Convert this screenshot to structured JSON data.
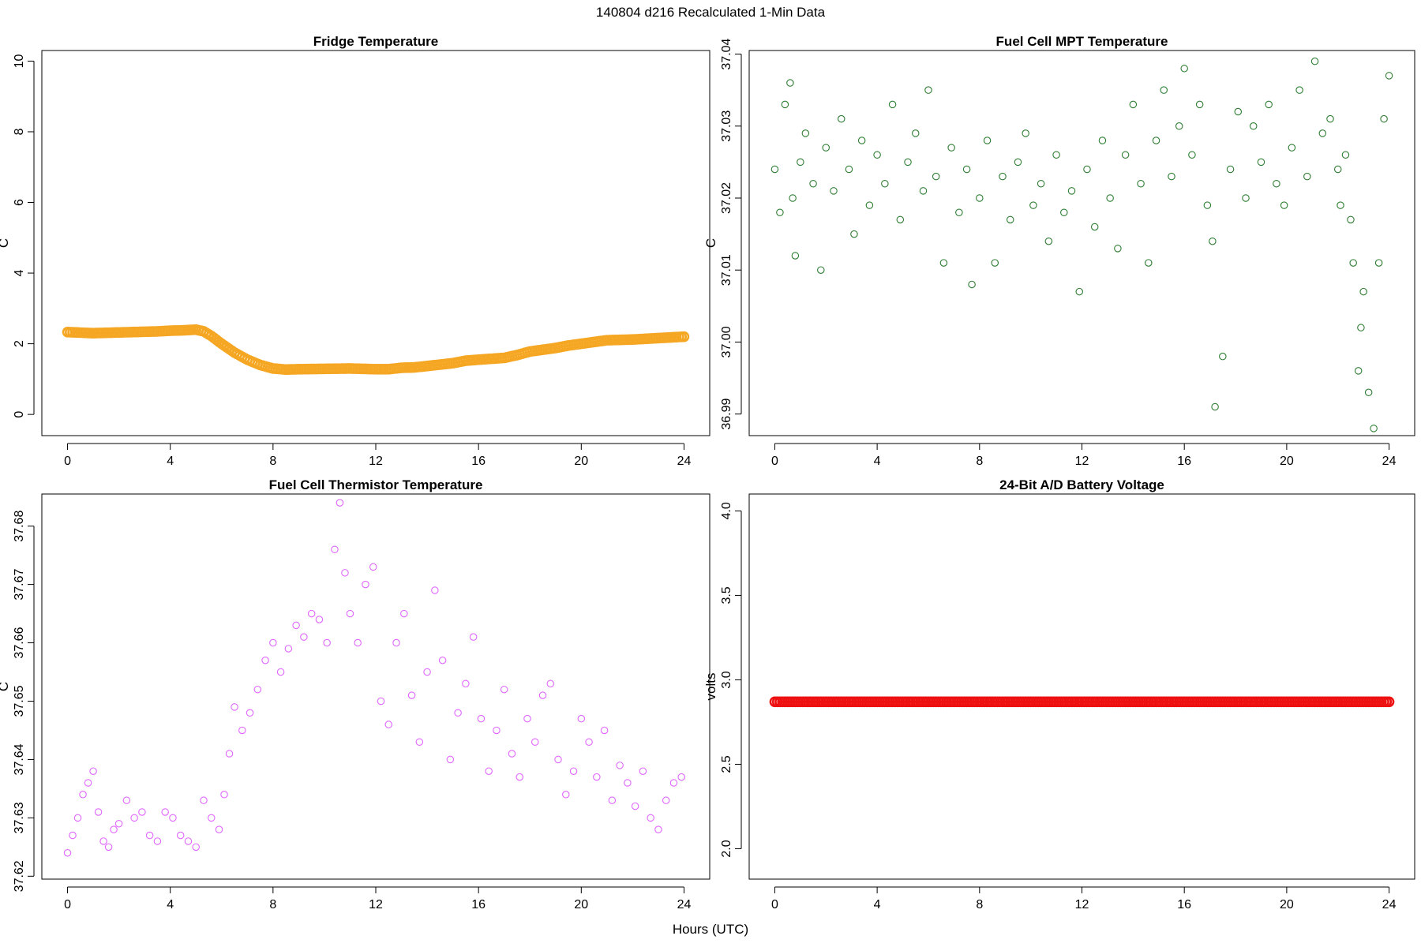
{
  "figure": {
    "title": "140804   d216   Recalculated 1-Min Data",
    "xlabel": "Hours (UTC)"
  },
  "chart_data": [
    {
      "type": "scatter",
      "title": "Fridge Temperature",
      "xlabel": "",
      "ylabel": "C",
      "xlim": [
        -1,
        25
      ],
      "ylim": [
        -0.6,
        10.3
      ],
      "xticks": [
        0,
        4,
        8,
        12,
        16,
        20,
        24
      ],
      "xtick_labels": [
        "0",
        "4",
        "8",
        "12",
        "16",
        "20",
        "24"
      ],
      "yticks": [
        0,
        2,
        4,
        6,
        8,
        10
      ],
      "ytick_labels": [
        "0",
        "2",
        "4",
        "6",
        "8",
        "10"
      ],
      "color": "#f5a623",
      "marker_style": "dense",
      "sample_interval_hours": 0.1,
      "series": [
        {
          "name": "Fridge Temperature",
          "x": [
            0,
            1,
            2,
            3,
            3.5,
            4,
            4.5,
            5,
            5.3,
            5.6,
            6,
            6.5,
            7,
            7.5,
            8,
            8.5,
            9,
            10,
            11,
            12,
            12.5,
            13,
            13.5,
            14,
            15,
            15.5,
            16,
            17,
            17.5,
            18,
            19,
            19.5,
            20,
            20.5,
            21,
            22,
            23,
            24
          ],
          "y": [
            2.33,
            2.3,
            2.32,
            2.34,
            2.35,
            2.37,
            2.38,
            2.4,
            2.35,
            2.22,
            2.0,
            1.75,
            1.55,
            1.4,
            1.3,
            1.27,
            1.28,
            1.29,
            1.3,
            1.28,
            1.28,
            1.32,
            1.33,
            1.37,
            1.45,
            1.52,
            1.55,
            1.6,
            1.68,
            1.78,
            1.88,
            1.95,
            2.0,
            2.05,
            2.1,
            2.12,
            2.16,
            2.2
          ]
        }
      ]
    },
    {
      "type": "scatter",
      "title": "Fuel Cell MPT Temperature",
      "xlabel": "",
      "ylabel": "C",
      "xlim": [
        -1,
        25
      ],
      "ylim": [
        36.987,
        37.0405
      ],
      "xticks": [
        0,
        4,
        8,
        12,
        16,
        20,
        24
      ],
      "xtick_labels": [
        "0",
        "4",
        "8",
        "12",
        "16",
        "20",
        "24"
      ],
      "yticks": [
        36.99,
        37.0,
        37.01,
        37.02,
        37.03,
        37.04
      ],
      "ytick_labels": [
        "36.99",
        "37.00",
        "37.01",
        "37.02",
        "37.03",
        "37.04"
      ],
      "color": "#2e7d32",
      "marker_style": "open-circle",
      "series": [
        {
          "name": "Fuel Cell MPT Temperature",
          "x": [
            0.0,
            0.2,
            0.4,
            0.6,
            0.7,
            0.8,
            1.0,
            1.2,
            1.5,
            1.8,
            2.0,
            2.3,
            2.6,
            2.9,
            3.1,
            3.4,
            3.7,
            4.0,
            4.3,
            4.6,
            4.9,
            5.2,
            5.5,
            5.8,
            6.0,
            6.3,
            6.6,
            6.9,
            7.2,
            7.5,
            7.7,
            8.0,
            8.3,
            8.6,
            8.9,
            9.2,
            9.5,
            9.8,
            10.1,
            10.4,
            10.7,
            11.0,
            11.3,
            11.6,
            11.9,
            12.2,
            12.5,
            12.8,
            13.1,
            13.4,
            13.7,
            14.0,
            14.3,
            14.6,
            14.9,
            15.2,
            15.5,
            15.8,
            16.0,
            16.3,
            16.6,
            16.9,
            17.1,
            17.2,
            17.5,
            17.8,
            18.1,
            18.4,
            18.7,
            19.0,
            19.3,
            19.6,
            19.9,
            20.2,
            20.5,
            20.8,
            21.1,
            21.4,
            21.7,
            22.0,
            22.1,
            22.3,
            22.5,
            22.6,
            22.8,
            22.9,
            23.0,
            23.2,
            23.4,
            23.6,
            23.8,
            24.0
          ],
          "y": [
            37.024,
            37.018,
            37.033,
            37.036,
            37.02,
            37.012,
            37.025,
            37.029,
            37.022,
            37.01,
            37.027,
            37.021,
            37.031,
            37.024,
            37.015,
            37.028,
            37.019,
            37.026,
            37.022,
            37.033,
            37.017,
            37.025,
            37.029,
            37.021,
            37.035,
            37.023,
            37.011,
            37.027,
            37.018,
            37.024,
            37.008,
            37.02,
            37.028,
            37.011,
            37.023,
            37.017,
            37.025,
            37.029,
            37.019,
            37.022,
            37.014,
            37.026,
            37.018,
            37.021,
            37.007,
            37.024,
            37.016,
            37.028,
            37.02,
            37.013,
            37.026,
            37.033,
            37.022,
            37.011,
            37.028,
            37.035,
            37.023,
            37.03,
            37.038,
            37.026,
            37.033,
            37.019,
            37.014,
            36.991,
            36.998,
            37.024,
            37.032,
            37.02,
            37.03,
            37.025,
            37.033,
            37.022,
            37.019,
            37.027,
            37.035,
            37.023,
            37.039,
            37.029,
            37.031,
            37.024,
            37.019,
            37.026,
            37.017,
            37.011,
            36.996,
            37.002,
            37.007,
            36.993,
            36.988,
            37.011,
            37.031,
            37.037
          ]
        }
      ]
    },
    {
      "type": "scatter",
      "title": "Fuel Cell Thermistor Temperature",
      "xlabel": "",
      "ylabel": "C",
      "xlim": [
        -1,
        25
      ],
      "ylim": [
        37.6195,
        37.6855
      ],
      "xticks": [
        0,
        4,
        8,
        12,
        16,
        20,
        24
      ],
      "xtick_labels": [
        "0",
        "4",
        "8",
        "12",
        "16",
        "20",
        "24"
      ],
      "yticks": [
        37.62,
        37.63,
        37.64,
        37.65,
        37.66,
        37.67,
        37.68
      ],
      "ytick_labels": [
        "37.62",
        "37.63",
        "37.64",
        "37.65",
        "37.66",
        "37.67",
        "37.68"
      ],
      "color": "#e066ff",
      "marker_style": "open-circle",
      "series": [
        {
          "name": "Fuel Cell Thermistor Temperature",
          "x": [
            0.0,
            0.2,
            0.4,
            0.6,
            0.8,
            1.0,
            1.2,
            1.4,
            1.6,
            1.8,
            2.0,
            2.3,
            2.6,
            2.9,
            3.2,
            3.5,
            3.8,
            4.1,
            4.4,
            4.7,
            5.0,
            5.3,
            5.6,
            5.9,
            6.1,
            6.3,
            6.5,
            6.8,
            7.1,
            7.4,
            7.7,
            8.0,
            8.3,
            8.6,
            8.9,
            9.2,
            9.5,
            9.8,
            10.1,
            10.4,
            10.6,
            10.8,
            11.0,
            11.3,
            11.6,
            11.9,
            12.2,
            12.5,
            12.8,
            13.1,
            13.4,
            13.7,
            14.0,
            14.3,
            14.6,
            14.9,
            15.2,
            15.5,
            15.8,
            16.1,
            16.4,
            16.7,
            17.0,
            17.3,
            17.6,
            17.9,
            18.2,
            18.5,
            18.8,
            19.1,
            19.4,
            19.7,
            20.0,
            20.3,
            20.6,
            20.9,
            21.2,
            21.5,
            21.8,
            22.1,
            22.4,
            22.7,
            23.0,
            23.3,
            23.6,
            23.9
          ],
          "y": [
            37.624,
            37.627,
            37.63,
            37.634,
            37.636,
            37.638,
            37.631,
            37.626,
            37.625,
            37.628,
            37.629,
            37.633,
            37.63,
            37.631,
            37.627,
            37.626,
            37.631,
            37.63,
            37.627,
            37.626,
            37.625,
            37.633,
            37.63,
            37.628,
            37.634,
            37.641,
            37.649,
            37.645,
            37.648,
            37.652,
            37.657,
            37.66,
            37.655,
            37.659,
            37.663,
            37.661,
            37.665,
            37.664,
            37.66,
            37.676,
            37.684,
            37.672,
            37.665,
            37.66,
            37.67,
            37.673,
            37.65,
            37.646,
            37.66,
            37.665,
            37.651,
            37.643,
            37.655,
            37.669,
            37.657,
            37.64,
            37.648,
            37.653,
            37.661,
            37.647,
            37.638,
            37.645,
            37.652,
            37.641,
            37.637,
            37.647,
            37.643,
            37.651,
            37.653,
            37.64,
            37.634,
            37.638,
            37.647,
            37.643,
            37.637,
            37.645,
            37.633,
            37.639,
            37.636,
            37.632,
            37.638,
            37.63,
            37.628,
            37.633,
            37.636,
            37.637
          ]
        }
      ]
    },
    {
      "type": "scatter",
      "title": "24-Bit A/D Battery Voltage",
      "xlabel": "",
      "ylabel": "volts",
      "xlim": [
        -1,
        25
      ],
      "ylim": [
        1.82,
        4.1
      ],
      "xticks": [
        0,
        4,
        8,
        12,
        16,
        20,
        24
      ],
      "xtick_labels": [
        "0",
        "4",
        "8",
        "12",
        "16",
        "20",
        "24"
      ],
      "yticks": [
        2.0,
        2.5,
        3.0,
        3.5,
        4.0
      ],
      "ytick_labels": [
        "2.0",
        "2.5",
        "3.0",
        "3.5",
        "4.0"
      ],
      "color": "#ee1111",
      "marker_style": "dense",
      "sample_interval_hours": 0.1,
      "series": [
        {
          "name": "24-Bit A/D Battery Voltage",
          "x": [
            0,
            24
          ],
          "y": [
            2.87,
            2.87
          ]
        }
      ]
    }
  ]
}
